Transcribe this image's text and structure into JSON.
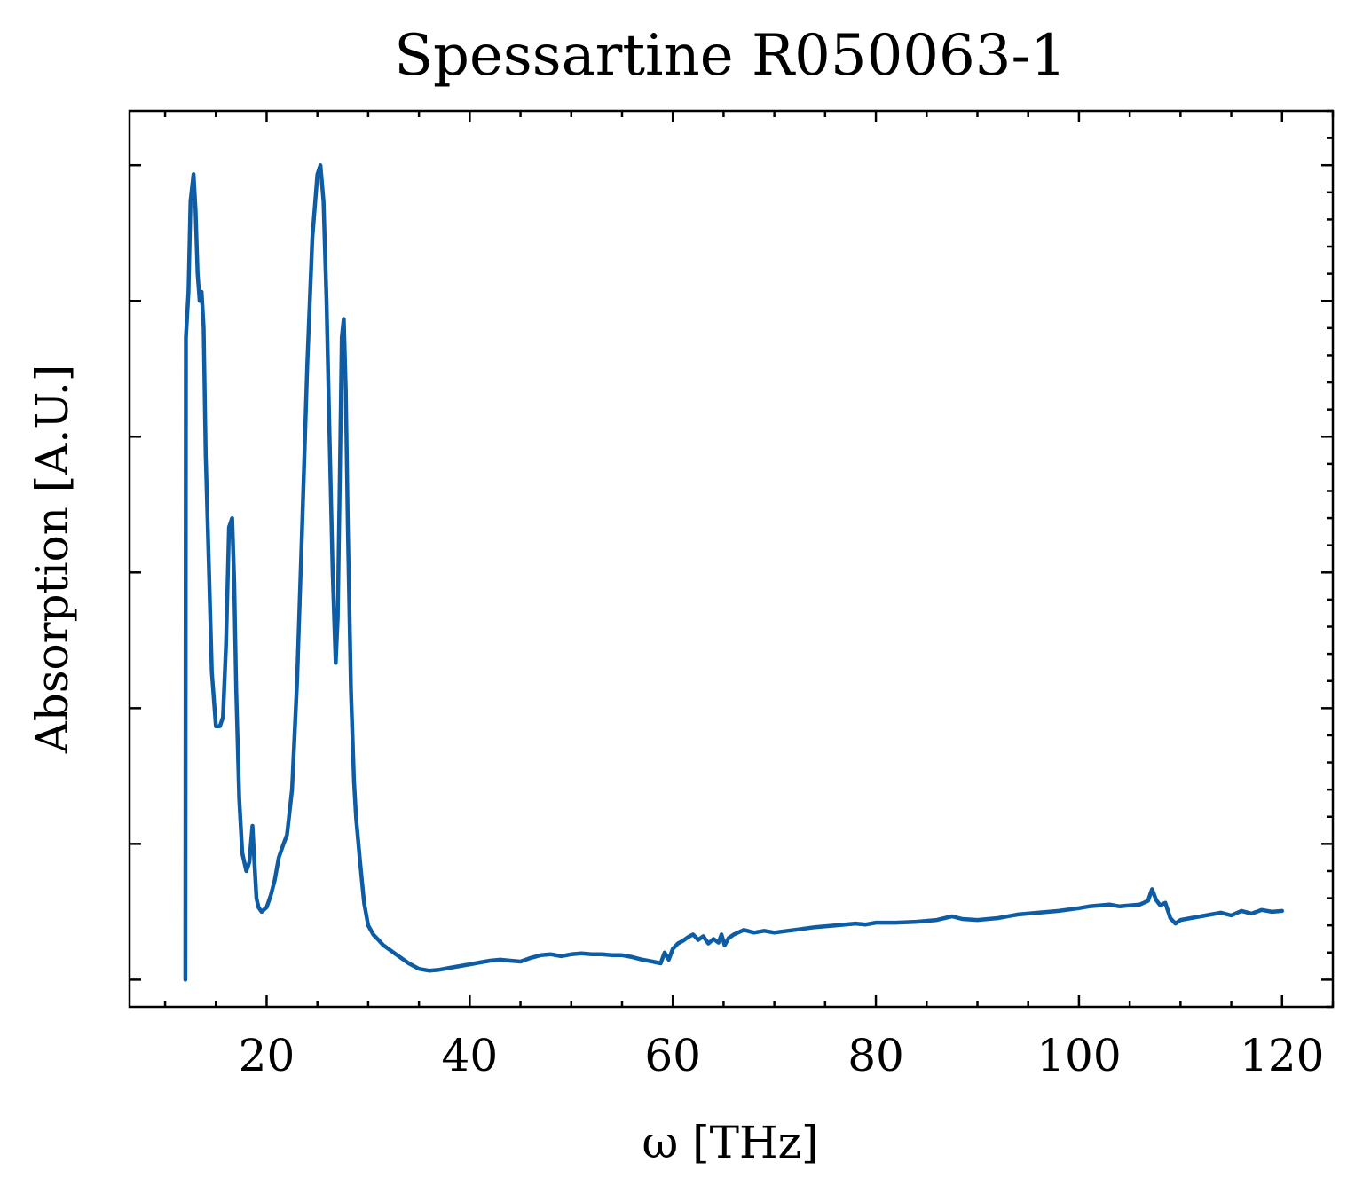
{
  "chart_data": {
    "type": "line",
    "title": "Spessartine R050063-1",
    "xlabel": "ω [THz]",
    "ylabel": "Absorption [A.U.]",
    "xlim": [
      6.5,
      125
    ],
    "ylim": [
      -0.03,
      0.96
    ],
    "x_ticks": [
      20,
      40,
      60,
      80,
      100,
      120
    ],
    "x_tick_labels": [
      "20",
      "40",
      "60",
      "80",
      "100",
      "120"
    ],
    "x_minor_step": 5,
    "y_major_ticks": [
      0,
      0.15,
      0.3,
      0.45,
      0.6,
      0.75,
      0.9
    ],
    "y_minor_step": 0.03,
    "y_tick_labels_shown": false,
    "ticks_direction": "in",
    "grid": false,
    "legend": "none",
    "series": [
      {
        "color": "#0C5DA5",
        "x": [
          12.0,
          12.05,
          12.3,
          12.5,
          12.8,
          13.0,
          13.2,
          13.4,
          13.6,
          13.8,
          14.0,
          14.3,
          14.6,
          15.0,
          15.4,
          15.7,
          16.0,
          16.3,
          16.6,
          16.8,
          17.0,
          17.3,
          17.6,
          18.0,
          18.3,
          18.6,
          18.8,
          19.0,
          19.2,
          19.5,
          19.8,
          20.0,
          20.4,
          20.8,
          21.2,
          21.6,
          22.0,
          22.5,
          23.0,
          23.5,
          24.0,
          24.5,
          25.0,
          25.3,
          25.6,
          25.9,
          26.2,
          26.5,
          26.8,
          27.0,
          27.2,
          27.4,
          27.6,
          27.8,
          28.0,
          28.3,
          28.6,
          28.8,
          29.2,
          29.6,
          30.0,
          30.5,
          31.0,
          31.5,
          32.0,
          33.0,
          34.0,
          35.0,
          36.0,
          37.0,
          38.0,
          39.0,
          40.0,
          41.0,
          42.0,
          43.0,
          44.0,
          45.0,
          46.0,
          47.0,
          48.0,
          49.0,
          50.0,
          51.0,
          52.0,
          53.0,
          54.0,
          55.0,
          56.0,
          57.0,
          58.0,
          58.8,
          59.2,
          59.6,
          60.0,
          60.5,
          61.0,
          61.5,
          62.0,
          62.5,
          63.0,
          63.5,
          64.0,
          64.5,
          64.8,
          65.1,
          65.5,
          66.0,
          67.0,
          68.0,
          69.0,
          70.0,
          72.0,
          74.0,
          76.0,
          78.0,
          79.0,
          80.0,
          82.0,
          84.0,
          86.0,
          87.5,
          88.5,
          90.0,
          92.0,
          94.0,
          96.0,
          98.0,
          100.0,
          101.0,
          102.0,
          103.0,
          104.0,
          105.0,
          106.0,
          106.8,
          107.2,
          107.6,
          108.0,
          108.5,
          109.0,
          109.5,
          110.0,
          111.0,
          112.0,
          113.0,
          114.0,
          115.0,
          116.0,
          117.0,
          118.0,
          119.0,
          120.0
        ],
        "y": [
          0.0,
          0.71,
          0.76,
          0.86,
          0.89,
          0.85,
          0.78,
          0.75,
          0.76,
          0.72,
          0.58,
          0.46,
          0.34,
          0.28,
          0.28,
          0.29,
          0.37,
          0.5,
          0.51,
          0.44,
          0.32,
          0.2,
          0.14,
          0.12,
          0.13,
          0.17,
          0.13,
          0.09,
          0.08,
          0.075,
          0.078,
          0.08,
          0.093,
          0.11,
          0.135,
          0.148,
          0.16,
          0.21,
          0.33,
          0.5,
          0.68,
          0.82,
          0.89,
          0.9,
          0.86,
          0.75,
          0.6,
          0.45,
          0.35,
          0.4,
          0.55,
          0.71,
          0.73,
          0.65,
          0.5,
          0.32,
          0.22,
          0.18,
          0.13,
          0.085,
          0.06,
          0.05,
          0.044,
          0.038,
          0.034,
          0.026,
          0.018,
          0.012,
          0.01,
          0.011,
          0.013,
          0.015,
          0.017,
          0.019,
          0.021,
          0.022,
          0.021,
          0.02,
          0.024,
          0.027,
          0.028,
          0.026,
          0.028,
          0.029,
          0.028,
          0.028,
          0.027,
          0.027,
          0.025,
          0.022,
          0.02,
          0.018,
          0.03,
          0.022,
          0.034,
          0.04,
          0.043,
          0.047,
          0.05,
          0.044,
          0.048,
          0.04,
          0.045,
          0.041,
          0.05,
          0.038,
          0.046,
          0.05,
          0.055,
          0.052,
          0.054,
          0.052,
          0.055,
          0.058,
          0.06,
          0.062,
          0.061,
          0.063,
          0.063,
          0.064,
          0.066,
          0.07,
          0.067,
          0.066,
          0.068,
          0.072,
          0.074,
          0.076,
          0.079,
          0.081,
          0.082,
          0.083,
          0.081,
          0.082,
          0.083,
          0.087,
          0.1,
          0.088,
          0.082,
          0.085,
          0.068,
          0.062,
          0.066,
          0.068,
          0.07,
          0.072,
          0.074,
          0.071,
          0.076,
          0.073,
          0.077,
          0.075,
          0.076
        ]
      }
    ]
  }
}
